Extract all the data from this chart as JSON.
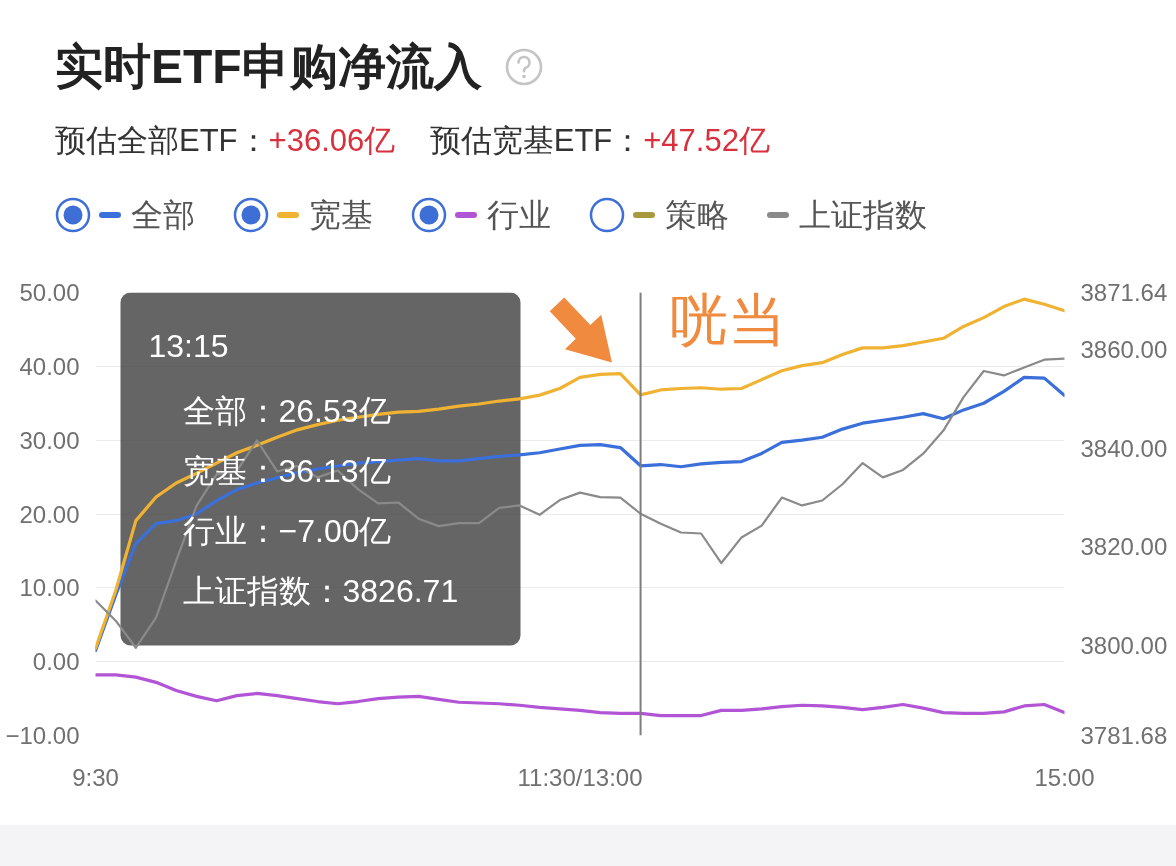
{
  "chart_data": {
    "type": "line",
    "title": "实时ETF申购净流入",
    "subtitle": "预估全部ETF：+36.06亿    预估宽基ETF：+47.52亿",
    "legend": "top",
    "grid": "y",
    "categories": [
      "9:30",
      null,
      null,
      null,
      null,
      null,
      null,
      null,
      null,
      null,
      null,
      null,
      null,
      null,
      null,
      null,
      null,
      null,
      null,
      null,
      null,
      null,
      null,
      null,
      "11:30/13:00",
      null,
      null,
      null,
      null,
      null,
      null,
      null,
      null,
      null,
      null,
      null,
      null,
      null,
      null,
      null,
      null,
      null,
      null,
      null,
      null,
      null,
      null,
      null,
      "15:00"
    ],
    "ylim": [
      -10,
      50
    ],
    "yticks": [
      {
        "value": -10,
        "label": "−10.00"
      },
      {
        "value": 0,
        "label": "0.00"
      },
      {
        "value": 10,
        "label": "10.00"
      },
      {
        "value": 20,
        "label": "20.00"
      },
      {
        "value": 30,
        "label": "30.00"
      },
      {
        "value": 40,
        "label": "40.00"
      },
      {
        "value": 50,
        "label": "50.00"
      }
    ],
    "y2lim": [
      3781.68,
      3871.64
    ],
    "y2ticks": [
      3781.68,
      {
        "value": 3800,
        "label": "3800.00"
      },
      {
        "value": 3820,
        "label": "3820.00"
      },
      {
        "value": 3840,
        "label": "3840.00"
      },
      {
        "value": 3860,
        "label": "3860.00"
      },
      3871.64
    ],
    "series": [
      {
        "name": "全部",
        "color": "#3b6fd9",
        "values": [
          1.5,
          9.0,
          16.0,
          18.7,
          19.1,
          20.0,
          21.8,
          23.3,
          24.2,
          24.9,
          25.6,
          26.1,
          26.5,
          26.9,
          27.1,
          27.3,
          27.5,
          27.2,
          27.2,
          27.5,
          27.8,
          28.0,
          28.3,
          28.8,
          29.3,
          29.4,
          29.0,
          26.53,
          26.7,
          26.4,
          26.8,
          27.0,
          27.1,
          28.2,
          29.7,
          30.0,
          30.4,
          31.5,
          32.3,
          32.7,
          33.1,
          33.6,
          32.9,
          34.1,
          35.0,
          36.6,
          38.5,
          38.4,
          36.06
        ]
      },
      {
        "name": "宽基",
        "color": "#f0b232",
        "values": [
          1.8,
          9.6,
          19.1,
          22.3,
          24.2,
          25.5,
          26.9,
          28.3,
          29.3,
          30.4,
          31.4,
          32.1,
          32.7,
          33.1,
          33.5,
          33.8,
          33.9,
          34.2,
          34.6,
          34.9,
          35.3,
          35.6,
          36.1,
          37.0,
          38.5,
          38.9,
          39.0,
          36.13,
          36.8,
          37.0,
          37.1,
          36.9,
          37.0,
          38.2,
          39.4,
          40.1,
          40.5,
          41.6,
          42.5,
          42.5,
          42.8,
          43.3,
          43.8,
          45.4,
          46.6,
          48.1,
          49.1,
          48.4,
          47.52
        ]
      },
      {
        "name": "行业",
        "color": "#b254d6",
        "values": [
          -1.8,
          -1.8,
          -2.1,
          -2.8,
          -3.9,
          -4.7,
          -5.3,
          -4.6,
          -4.3,
          -4.6,
          -5.0,
          -5.4,
          -5.7,
          -5.4,
          -5.0,
          -4.8,
          -4.7,
          -5.1,
          -5.5,
          -5.6,
          -5.7,
          -5.9,
          -6.2,
          -6.4,
          -6.6,
          -6.9,
          -7.0,
          -7.0,
          -7.3,
          -7.3,
          -7.3,
          -6.6,
          -6.6,
          -6.4,
          -6.1,
          -5.9,
          -6.0,
          -6.2,
          -6.5,
          -6.2,
          -5.8,
          -6.3,
          -6.9,
          -7.0,
          -7.0,
          -6.8,
          -6.0,
          -5.8,
          -6.9
        ]
      },
      {
        "name": "策略",
        "color": "#a8993e",
        "values": [
          null,
          null,
          null,
          null,
          null,
          null,
          null,
          null,
          null,
          null,
          null,
          null,
          null,
          null,
          null,
          null,
          null,
          null,
          null,
          null,
          null,
          null,
          null,
          null,
          null,
          null,
          null,
          null,
          null,
          null,
          null,
          null,
          null,
          null,
          null,
          null,
          null,
          null,
          null,
          null,
          null,
          null,
          null,
          null,
          null,
          null,
          null,
          null,
          null
        ]
      },
      {
        "name": "上证指数",
        "color": "#8a8a8a",
        "axis": "y2",
        "values": [
          3809.1,
          3805.0,
          3799.5,
          3805.6,
          3817.2,
          3828.3,
          3834.7,
          3835.4,
          3841.6,
          3835.3,
          3836.4,
          3834.1,
          3835.5,
          3831.7,
          3828.8,
          3829.0,
          3825.7,
          3824.2,
          3824.8,
          3824.8,
          3827.9,
          3828.4,
          3826.5,
          3829.5,
          3831.0,
          3830.1,
          3830.0,
          3826.71,
          3824.7,
          3822.9,
          3822.7,
          3816.7,
          3821.9,
          3824.3,
          3830.0,
          3828.4,
          3829.4,
          3832.7,
          3837.0,
          3834.1,
          3835.6,
          3838.9,
          3843.6,
          3850.4,
          3855.7,
          3854.8,
          3856.4,
          3858.0,
          3858.2
        ]
      }
    ],
    "annotations": [
      "13:15",
      "全部：26.53亿",
      "宽基：36.13亿",
      "行业：−7.00亿",
      "上证指数：3826.71",
      "咣当"
    ]
  }
}
